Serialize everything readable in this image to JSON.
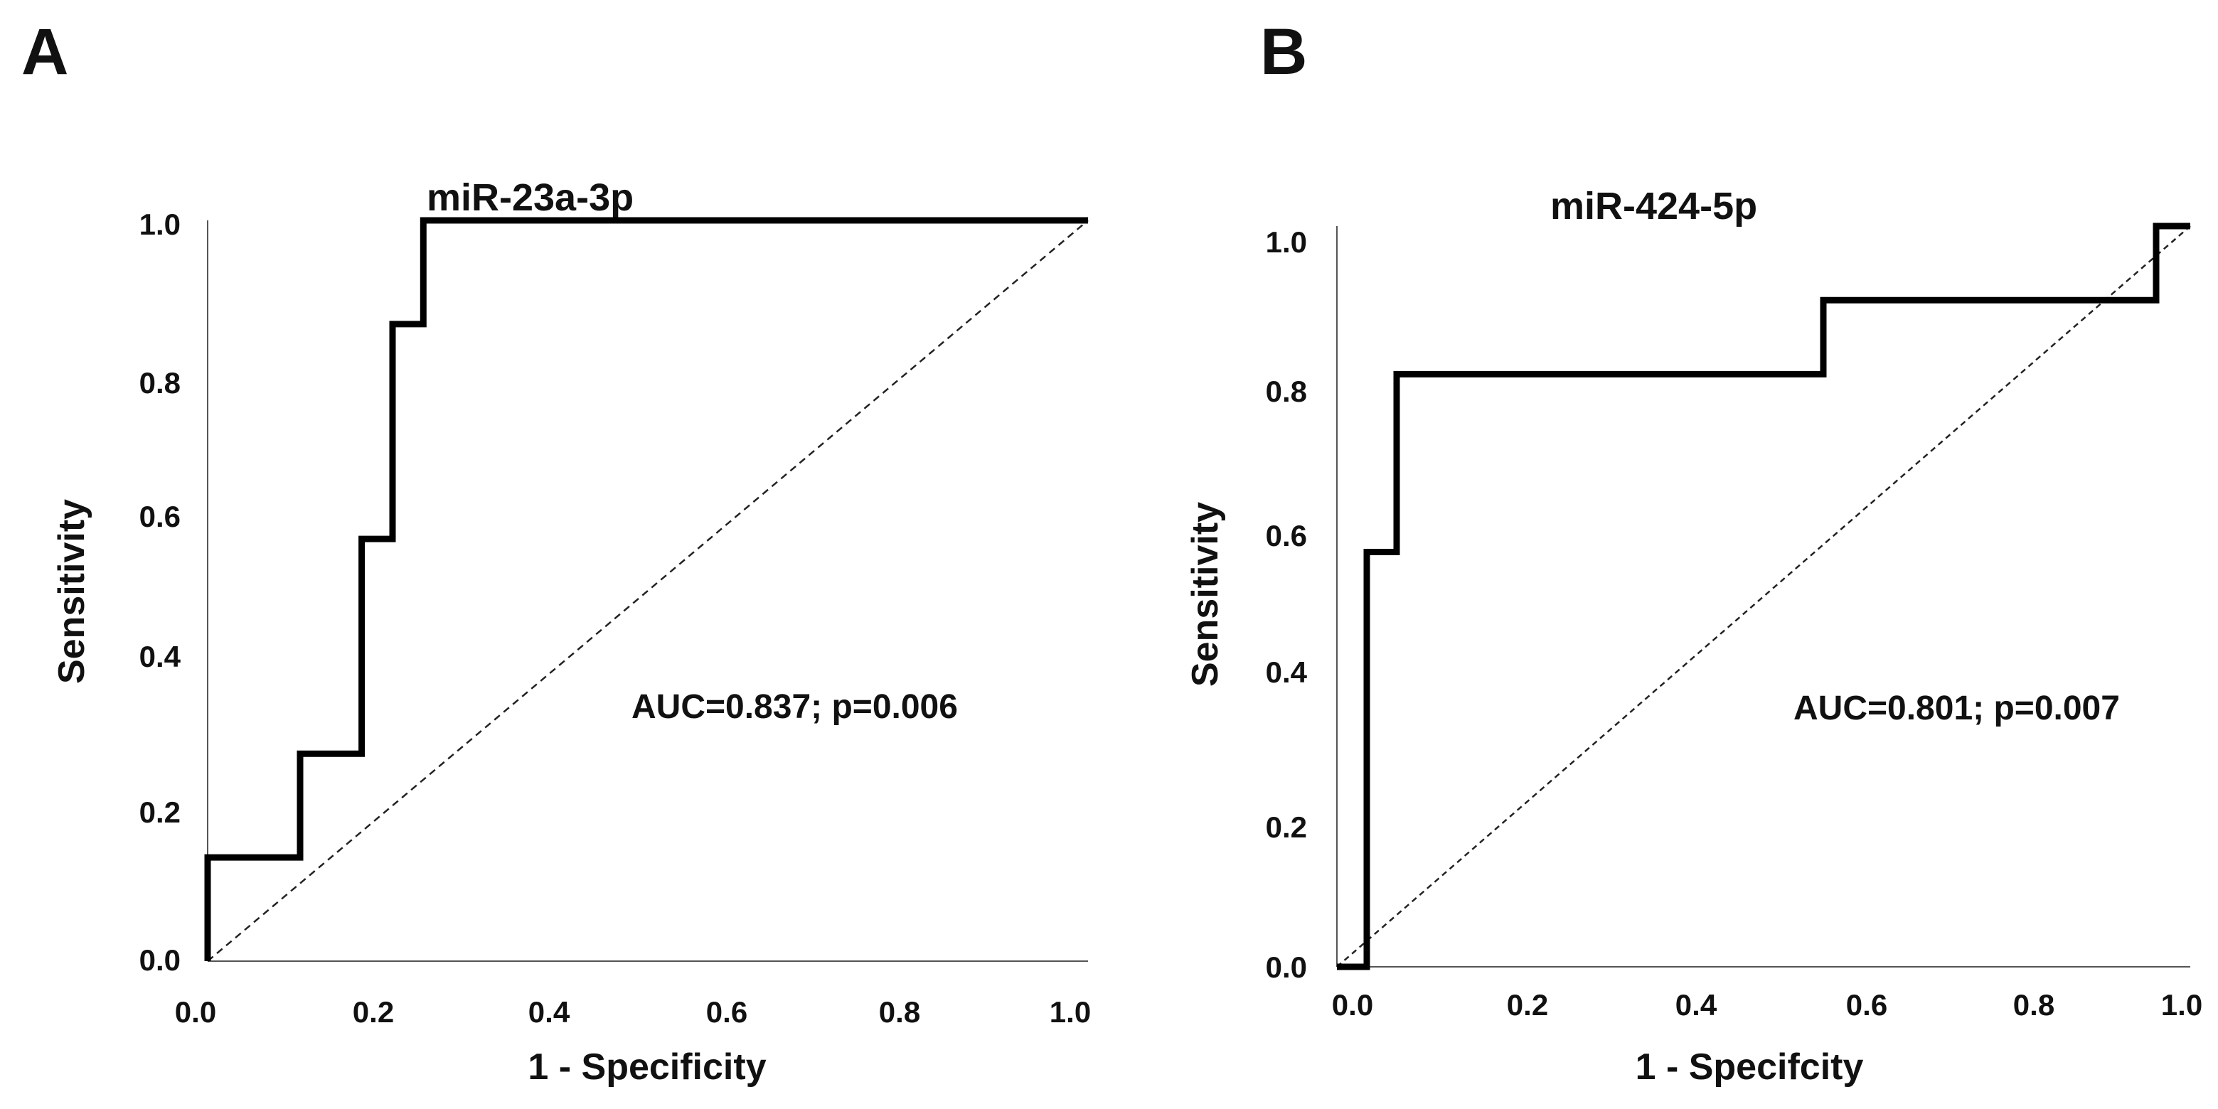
{
  "chart_data": [
    {
      "type": "line",
      "panel_label": "A",
      "title": "miR-23a-3p",
      "xlabel": "1 - Specificity",
      "ylabel": "Sensitivity",
      "xlim": [
        0,
        1
      ],
      "ylim": [
        0,
        1
      ],
      "x_ticks": [
        "0.0",
        "0.2",
        "0.4",
        "0.6",
        "0.8",
        "1.0"
      ],
      "y_ticks": [
        "0.0",
        "0.2",
        "0.4",
        "0.6",
        "0.8",
        "1.0"
      ],
      "annotation": "AUC=0.837; p=0.006",
      "grid": false,
      "series": [
        {
          "name": "ROC curve",
          "x": [
            0.0,
            0.0,
            0.105,
            0.105,
            0.175,
            0.175,
            0.21,
            0.21,
            0.245,
            0.245,
            1.0
          ],
          "y": [
            0.0,
            0.14,
            0.14,
            0.28,
            0.28,
            0.57,
            0.57,
            0.86,
            0.86,
            1.0,
            1.0
          ]
        },
        {
          "name": "Reference line",
          "style": "dashed",
          "x": [
            0.0,
            1.0
          ],
          "y": [
            0.0,
            1.0
          ]
        }
      ]
    },
    {
      "type": "line",
      "panel_label": "B",
      "title": "miR-424-5p",
      "xlabel": "1 - Specifcity",
      "ylabel": "Sensitivity",
      "xlim": [
        0,
        1
      ],
      "ylim": [
        0,
        1
      ],
      "x_ticks": [
        "0.0",
        "0.2",
        "0.4",
        "0.6",
        "0.8",
        "1.0"
      ],
      "y_ticks": [
        "0.0",
        "0.2",
        "0.4",
        "0.6",
        "0.8",
        "1.0"
      ],
      "annotation": "AUC=0.801; p=0.007",
      "grid": false,
      "series": [
        {
          "name": "ROC curve",
          "x": [
            0.0,
            0.035,
            0.035,
            0.07,
            0.07,
            0.57,
            0.57,
            0.96,
            0.96,
            1.0
          ],
          "y": [
            0.0,
            0.0,
            0.56,
            0.56,
            0.8,
            0.8,
            0.9,
            0.9,
            1.0,
            1.0
          ]
        },
        {
          "name": "Reference line",
          "style": "dashed",
          "x": [
            0.0,
            1.0
          ],
          "y": [
            0.0,
            1.0
          ]
        }
      ]
    }
  ]
}
